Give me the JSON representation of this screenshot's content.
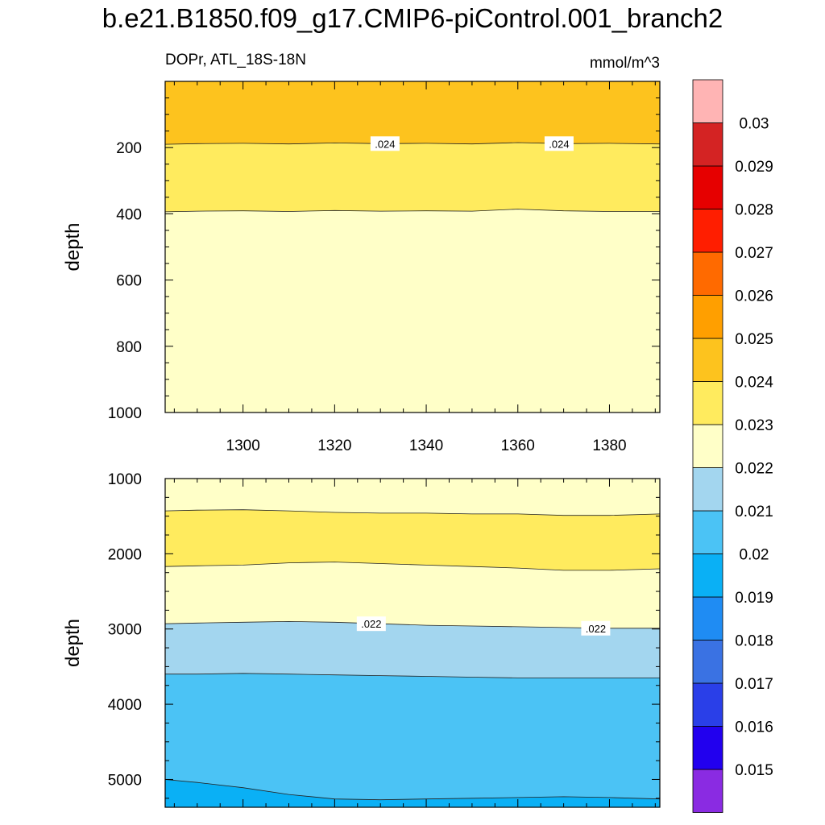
{
  "title": "b.e21.B1850.f09_g17.CMIP6-piControl.001_branch2",
  "left_label": "DOPr, ATL_18S-18N",
  "right_label": "mmol/m^3",
  "chart_data": {
    "type": "contour",
    "variable": "DOPr",
    "region": "ATL_18S-18N",
    "units": "mmol/m^3",
    "x_range": [
      1283,
      1391
    ],
    "x_ticks": [
      "1300",
      "1320",
      "1340",
      "1360",
      "1380"
    ],
    "x_tick_values": [
      1300,
      1320,
      1340,
      1360,
      1380
    ],
    "panels": [
      {
        "name": "upper",
        "ylabel": "depth",
        "y_range": [
          0,
          1000
        ],
        "y_ticks": [
          "200",
          "400",
          "600",
          "800",
          "1000"
        ],
        "y_tick_values": [
          200,
          400,
          600,
          800,
          1000
        ],
        "x": [
          1283,
          1290,
          1300,
          1310,
          1320,
          1330,
          1340,
          1350,
          1360,
          1370,
          1380,
          1391
        ],
        "contours": [
          {
            "level": 0.024,
            "depths": [
              190,
              188,
              187,
              189,
              186,
              188,
              187,
              189,
              185,
              188,
              187,
              189
            ]
          },
          {
            "level": 0.023,
            "depths": [
              394,
              392,
              391,
              393,
              390,
              392,
              391,
              392,
              386,
              391,
              393,
              393
            ]
          }
        ],
        "fill_levels": [
          0.0245,
          0.0235,
          0.0225
        ],
        "labels": [
          {
            "text": ".024",
            "x": 1331,
            "y": 188
          },
          {
            "text": ".024",
            "x": 1369,
            "y": 188
          }
        ]
      },
      {
        "name": "lower",
        "ylabel": "depth",
        "y_range": [
          1000,
          5370
        ],
        "y_ticks": [
          "1000",
          "2000",
          "3000",
          "4000",
          "5000"
        ],
        "y_tick_values": [
          1000,
          2000,
          3000,
          4000,
          5000
        ],
        "x": [
          1283,
          1290,
          1300,
          1310,
          1320,
          1330,
          1340,
          1350,
          1360,
          1370,
          1380,
          1391
        ],
        "contours": [
          {
            "level": 0.023,
            "depths": [
              1430,
              1420,
              1415,
              1430,
              1450,
              1460,
              1460,
              1470,
              1470,
              1490,
              1490,
              1470
            ]
          },
          {
            "level": 0.024,
            "depths": [
              2170,
              2160,
              2150,
              2120,
              2110,
              2130,
              2150,
              2170,
              2190,
              2220,
              2220,
              2200
            ]
          },
          {
            "level": 0.022,
            "depths": [
              2930,
              2920,
              2910,
              2900,
              2910,
              2930,
              2950,
              2960,
              2970,
              2980,
              2990,
              2990
            ]
          },
          {
            "level": 0.021,
            "depths": [
              3600,
              3600,
              3590,
              3600,
              3610,
              3620,
              3630,
              3640,
              3650,
              3650,
              3650,
              3650
            ]
          },
          {
            "level": 0.02,
            "depths": [
              5000,
              5040,
              5110,
              5200,
              5260,
              5270,
              5260,
              5250,
              5240,
              5230,
              5240,
              5260
            ]
          }
        ],
        "fill_levels": [
          0.0225,
          0.0235,
          0.0225,
          0.0215,
          0.0205,
          0.0195
        ],
        "labels": [
          {
            "text": ".022",
            "x": 1328,
            "y": 2930
          },
          {
            "text": ".022",
            "x": 1377,
            "y": 2990
          }
        ]
      }
    ],
    "colorbar": {
      "label_values": [
        "0.015",
        "0.016",
        "0.017",
        "0.018",
        "0.019",
        "0.02",
        "0.021",
        "0.022",
        "0.023",
        "0.024",
        "0.025",
        "0.026",
        "0.027",
        "0.028",
        "0.029",
        "0.03"
      ],
      "colors": [
        "#8a2be2",
        "#2200ee",
        "#2a3fe8",
        "#3a72e3",
        "#1f8cf3",
        "#0ab0f5",
        "#4bc3f5",
        "#a3d6ef",
        "#ffffc8",
        "#ffeb5e",
        "#fdc31e",
        "#ff9f00",
        "#ff6a00",
        "#ff1e00",
        "#e60000",
        "#d42323",
        "#ffb4b4"
      ]
    }
  }
}
